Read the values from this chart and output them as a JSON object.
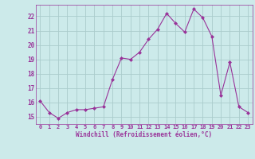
{
  "x": [
    0,
    1,
    2,
    3,
    4,
    5,
    6,
    7,
    8,
    9,
    10,
    11,
    12,
    13,
    14,
    15,
    16,
    17,
    18,
    19,
    20,
    21,
    22,
    23
  ],
  "y": [
    16.1,
    15.3,
    14.9,
    15.3,
    15.5,
    15.5,
    15.6,
    15.7,
    17.6,
    19.1,
    19.0,
    19.5,
    20.4,
    21.1,
    22.2,
    21.5,
    20.9,
    22.5,
    21.9,
    20.6,
    16.5,
    18.8,
    15.7,
    15.3
  ],
  "line_color": "#993399",
  "marker_color": "#993399",
  "bg_color": "#cceaea",
  "grid_color": "#aacccc",
  "xlabel": "Windchill (Refroidissement éolien,°C)",
  "xlabel_color": "#993399",
  "tick_color": "#993399",
  "xlim": [
    -0.5,
    23.5
  ],
  "ylim": [
    14.5,
    22.8
  ],
  "yticks": [
    15,
    16,
    17,
    18,
    19,
    20,
    21,
    22
  ],
  "xticks": [
    0,
    1,
    2,
    3,
    4,
    5,
    6,
    7,
    8,
    9,
    10,
    11,
    12,
    13,
    14,
    15,
    16,
    17,
    18,
    19,
    20,
    21,
    22,
    23
  ]
}
